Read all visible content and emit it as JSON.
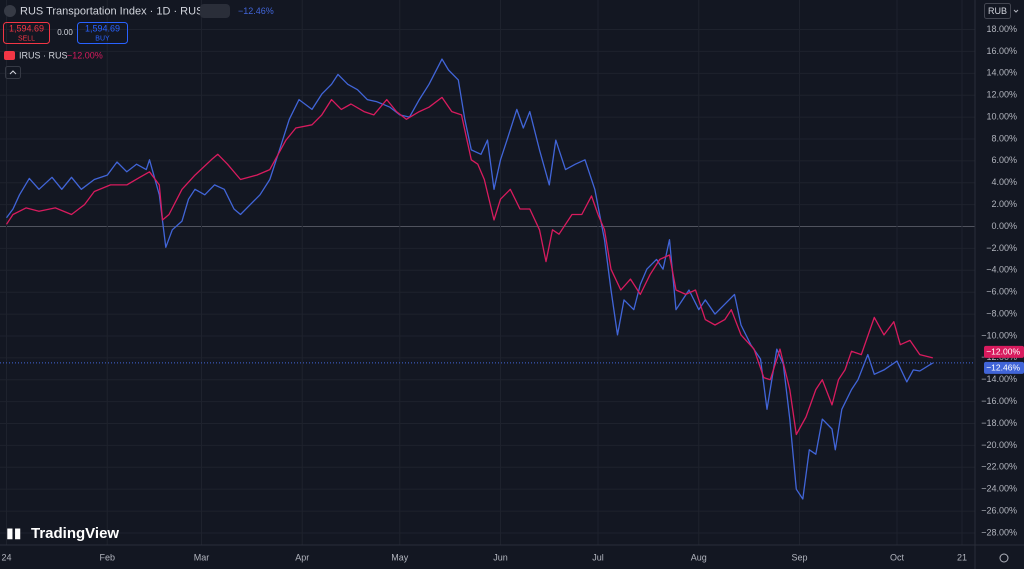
{
  "header": {
    "change": "−12.46%",
    "sell_price": "1,594.69",
    "sell": "SELL",
    "spread": "0.00",
    "buy_price": "1,594.69",
    "buy": "BUY",
    "currency": "RUB",
    "brand": "TradingView"
  },
  "chart_data": {
    "type": "line",
    "series": [
      {
        "name": "RUS Transportation Index · 1D · RUS",
        "color": "#4165d8",
        "legend_value": "−12.46%",
        "x": [
          0,
          2,
          4,
          7,
          10,
          14,
          17,
          20,
          23,
          27,
          31,
          34,
          37,
          40,
          43,
          44,
          47,
          49,
          51,
          54,
          56,
          58,
          61,
          64,
          67,
          70,
          72,
          75,
          78,
          81,
          84,
          87,
          90,
          94,
          97,
          100,
          102,
          105,
          108,
          111,
          114,
          118,
          121,
          124,
          127,
          130,
          134,
          136,
          139,
          141,
          143,
          146,
          148,
          150,
          152,
          154,
          157,
          159,
          161,
          164,
          167,
          169,
          172,
          175,
          178,
          181,
          184,
          186,
          188,
          190,
          193,
          195,
          197,
          200,
          202,
          204,
          206,
          208,
          210,
          213,
          215,
          218,
          221,
          224,
          226,
          229,
          232,
          234,
          237,
          239,
          241,
          243,
          245,
          247,
          249,
          251,
          254,
          255,
          257,
          260,
          262,
          265,
          267,
          270,
          274,
          277,
          279,
          281,
          285
        ],
        "values": [
          0.8,
          1.6,
          2.9,
          4.4,
          3.4,
          4.5,
          3.4,
          4.5,
          3.4,
          4.3,
          4.7,
          5.9,
          5.0,
          5.7,
          5.2,
          6.1,
          2.9,
          -1.9,
          -0.3,
          0.5,
          2.5,
          3.4,
          2.9,
          3.8,
          3.4,
          1.6,
          1.1,
          2.0,
          2.9,
          4.3,
          7.0,
          9.8,
          11.6,
          10.7,
          12.1,
          13.0,
          13.9,
          13.0,
          12.5,
          11.6,
          11.4,
          10.9,
          10.2,
          10.0,
          11.6,
          13.0,
          15.3,
          14.3,
          13.4,
          9.8,
          7.0,
          6.6,
          7.9,
          3.4,
          6.1,
          7.9,
          10.7,
          9.0,
          10.5,
          7.0,
          3.8,
          7.9,
          5.2,
          5.7,
          6.1,
          3.4,
          -1.2,
          -5.8,
          -9.9,
          -6.7,
          -7.6,
          -5.3,
          -3.9,
          -3.0,
          -3.9,
          -1.2,
          -7.6,
          -6.7,
          -5.8,
          -7.6,
          -6.7,
          -8.0,
          -7.1,
          -6.2,
          -9.0,
          -10.8,
          -12.1,
          -16.7,
          -11.2,
          -12.6,
          -17.6,
          -24.0,
          -24.9,
          -20.4,
          -20.8,
          -17.6,
          -18.5,
          -20.4,
          -16.7,
          -14.9,
          -14.0,
          -11.7,
          -13.5,
          -13.1,
          -12.3,
          -14.2,
          -13.1,
          -13.2,
          -12.46
        ]
      },
      {
        "name": "IRUS · RUS",
        "color": "#d81b5e",
        "legend_value": "−12.00%",
        "x": [
          0,
          2,
          6,
          10,
          15,
          20,
          24,
          27,
          32,
          37,
          41,
          44,
          47,
          48,
          50,
          54,
          58,
          63,
          65,
          68,
          72,
          77,
          81,
          86,
          89,
          94,
          97,
          100,
          103,
          106,
          110,
          113,
          117,
          120,
          123,
          127,
          130,
          134,
          137,
          140,
          143,
          145,
          147,
          150,
          152,
          155,
          158,
          161,
          164,
          166,
          168,
          170,
          174,
          177,
          180,
          182,
          184,
          186,
          189,
          192,
          195,
          198,
          201,
          204,
          206,
          209,
          212,
          215,
          218,
          221,
          223,
          226,
          230,
          233,
          235,
          238,
          241,
          243,
          246,
          249,
          251,
          254,
          256,
          258,
          260,
          263,
          267,
          270,
          273,
          275,
          278,
          281,
          285
        ],
        "values": [
          0.2,
          1.1,
          1.7,
          1.4,
          1.7,
          1.1,
          2.0,
          3.2,
          3.8,
          3.8,
          4.5,
          5.0,
          3.8,
          0.6,
          1.1,
          3.4,
          4.7,
          6.1,
          6.6,
          5.7,
          4.3,
          4.7,
          5.2,
          7.9,
          9.0,
          9.3,
          10.2,
          11.6,
          10.7,
          11.2,
          10.5,
          10.2,
          11.6,
          10.5,
          9.8,
          10.5,
          10.9,
          11.8,
          10.5,
          10.2,
          6.1,
          5.7,
          4.3,
          0.6,
          2.5,
          3.4,
          1.6,
          1.6,
          -0.3,
          -3.2,
          -0.3,
          -0.7,
          1.1,
          1.1,
          2.8,
          1.1,
          -0.3,
          -3.9,
          -5.8,
          -4.8,
          -6.2,
          -4.4,
          -3.0,
          -2.6,
          -5.8,
          -6.2,
          -5.8,
          -8.5,
          -9.0,
          -8.5,
          -7.6,
          -9.9,
          -11.2,
          -13.8,
          -14.0,
          -11.2,
          -14.9,
          -19.0,
          -17.4,
          -14.9,
          -14.0,
          -16.3,
          -14.0,
          -13.1,
          -11.4,
          -11.7,
          -8.3,
          -9.9,
          -8.7,
          -10.8,
          -10.4,
          -11.7,
          -12.0
        ]
      }
    ],
    "xlim": [
      -2,
      298
    ],
    "xticks": [
      {
        "value": 0,
        "label": "24"
      },
      {
        "value": 31,
        "label": "Feb"
      },
      {
        "value": 60,
        "label": "Mar"
      },
      {
        "value": 91,
        "label": "Apr"
      },
      {
        "value": 121,
        "label": "May"
      },
      {
        "value": 152,
        "label": "Jun"
      },
      {
        "value": 182,
        "label": "Jul"
      },
      {
        "value": 213,
        "label": "Aug"
      },
      {
        "value": 244,
        "label": "Sep"
      },
      {
        "value": 274,
        "label": "Oct"
      },
      {
        "value": 294,
        "label": "21"
      }
    ],
    "ylim": [
      -29.1,
      20.7
    ],
    "yticks": [
      {
        "value": 18,
        "label": "18.00%"
      },
      {
        "value": 16,
        "label": "16.00%"
      },
      {
        "value": 14,
        "label": "14.00%"
      },
      {
        "value": 12,
        "label": "12.00%"
      },
      {
        "value": 10,
        "label": "10.00%"
      },
      {
        "value": 8,
        "label": "8.00%"
      },
      {
        "value": 6,
        "label": "6.00%"
      },
      {
        "value": 4,
        "label": "4.00%"
      },
      {
        "value": 2,
        "label": "2.00%"
      },
      {
        "value": 0,
        "label": "0.00%"
      },
      {
        "value": -2,
        "label": "−2.00%"
      },
      {
        "value": -4,
        "label": "−4.00%"
      },
      {
        "value": -6,
        "label": "−6.00%"
      },
      {
        "value": -8,
        "label": "−8.00%"
      },
      {
        "value": -10,
        "label": "−10.00%"
      },
      {
        "value": -12,
        "label": "−12.00%"
      },
      {
        "value": -14,
        "label": "−14.00%"
      },
      {
        "value": -16,
        "label": "−16.00%"
      },
      {
        "value": -18,
        "label": "−18.00%"
      },
      {
        "value": -20,
        "label": "−20.00%"
      },
      {
        "value": -22,
        "label": "−22.00%"
      },
      {
        "value": -24,
        "label": "−24.00%"
      },
      {
        "value": -26,
        "label": "−26.00%"
      },
      {
        "value": -28,
        "label": "−28.00%"
      }
    ],
    "grid": true
  }
}
